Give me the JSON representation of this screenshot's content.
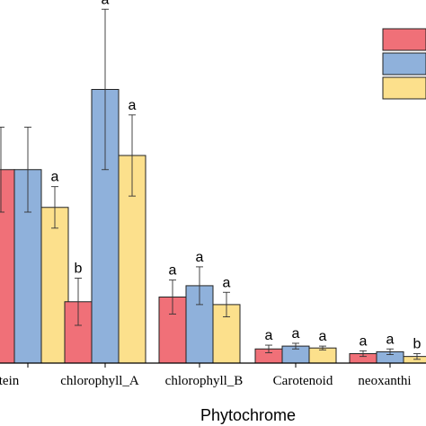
{
  "chart_data": {
    "type": "bar",
    "xlabel": "Phytochrome",
    "categories": [
      "protein",
      "chlorophyll_A",
      "chlorophyll_B",
      "Carotenoid",
      "neoxanthin"
    ],
    "category_labels": [
      "tein",
      "chlorophyll_A",
      "chlorophyll_B",
      "Carotenoid",
      "neoxanthi"
    ],
    "ylim": [
      0,
      36
    ],
    "series": [
      {
        "color": "#F07078",
        "values": [
          20.5,
          6.5,
          7.0,
          1.5,
          1.0
        ],
        "errors": [
          4.5,
          2.5,
          1.8,
          0.4,
          0.3
        ],
        "sig": [
          "",
          "b",
          "a",
          "a",
          "a"
        ]
      },
      {
        "color": "#8FB1DB",
        "values": [
          20.5,
          29.0,
          8.2,
          1.8,
          1.2
        ],
        "errors": [
          4.5,
          8.5,
          2.0,
          0.3,
          0.3
        ],
        "sig": [
          "",
          "a",
          "a",
          "a",
          "a"
        ]
      },
      {
        "color": "#FCE08C",
        "values": [
          16.5,
          22.0,
          6.2,
          1.6,
          0.7
        ],
        "errors": [
          2.2,
          4.3,
          1.3,
          0.2,
          0.3
        ],
        "sig": [
          "a",
          "a",
          "a",
          "a",
          "b"
        ]
      }
    ],
    "legend": {
      "position": "top-right"
    }
  }
}
